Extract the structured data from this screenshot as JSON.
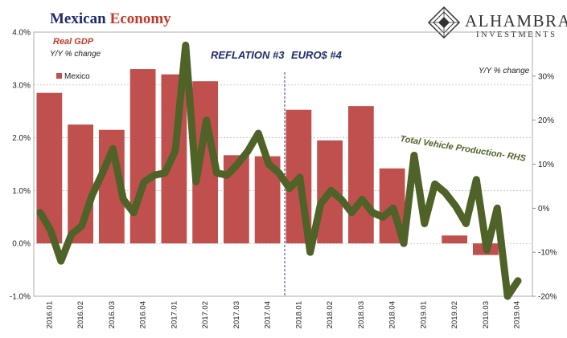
{
  "header": {
    "title_part1": "Mexican",
    "title_part2": "Economy",
    "logo_main": "ALHAMBRA",
    "logo_sub": "INVESTMENTS"
  },
  "chart_data": {
    "type": "bar+line",
    "categories": [
      "2016.01",
      "2016.02",
      "2016.03",
      "2016.04",
      "2017.01",
      "2017.02",
      "2017.03",
      "2017.04",
      "2018.01",
      "2018.02",
      "2018.03",
      "2018.04",
      "2019.01",
      "2019.02",
      "2019.03",
      "2019.04"
    ],
    "left_axis": {
      "label_line1": "Real GDP",
      "label_line2": "Y/Y % change",
      "ylim": [
        -1.0,
        4.0
      ],
      "ticks": [
        4.0,
        3.0,
        2.0,
        1.0,
        0.0,
        -1.0
      ],
      "tick_labels": [
        "4.0%",
        "3.0%",
        "2.0%",
        "1.0%",
        "0.0%",
        "-1.0%"
      ]
    },
    "right_axis": {
      "label": "Y/Y % change",
      "ylim": [
        -20,
        40
      ],
      "ticks": [
        30,
        20,
        10,
        0,
        -10,
        -20
      ],
      "tick_labels": [
        "30%",
        "20%",
        "10%",
        "0%",
        "-10%",
        "-20%"
      ]
    },
    "bar_series": {
      "name": "Mexico",
      "color": "#c0504d",
      "values": [
        2.85,
        2.25,
        2.15,
        3.3,
        3.2,
        3.07,
        1.67,
        1.65,
        2.53,
        1.95,
        2.6,
        1.42,
        null,
        0.15,
        -0.22,
        null
      ]
    },
    "line_series": {
      "name": "Total Vehicle Production- RHS",
      "color": "#4f6228",
      "values": [
        -1,
        -5,
        -12,
        -6,
        -4,
        3,
        8,
        13.5,
        2,
        -1,
        6,
        7.5,
        8,
        13,
        37,
        6,
        20,
        8,
        7.5,
        10,
        13,
        17,
        10,
        8,
        4.5,
        7,
        -10,
        1,
        4,
        2,
        -1,
        2,
        -1,
        -2,
        0,
        -8,
        12,
        -3.5,
        5.5,
        3.5,
        0.5,
        -3.5,
        6.5,
        -9.5,
        0,
        -20,
        -16.5
      ]
    },
    "annotations": {
      "era1": "REFLATION #3",
      "era2": "EURO$ #4"
    },
    "grid": "horizontal dashed",
    "legend_position": "top-left"
  }
}
